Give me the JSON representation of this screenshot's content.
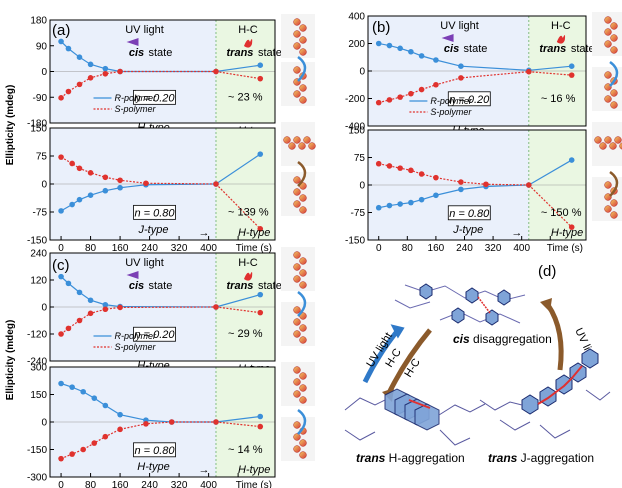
{
  "figure": {
    "y_axis_label": "Ellipticity (mdeg)",
    "x_axis_label": "Time (s)",
    "uv_label": "UV light",
    "hc_label": "H-C",
    "cis_state": "cis",
    "trans_state": "trans",
    "state_word": "state",
    "legend_r": "R-polymer",
    "legend_s": "S-polymer",
    "arrow_glyph": "→",
    "colors": {
      "r_series": "#3b8fd9",
      "s_series": "#e0322e",
      "uv_bg": "#eaf0fb",
      "hc_bg": "#eaf7e2"
    }
  },
  "panel_d": {
    "letter": "(d)",
    "cis_caption_italic": "cis",
    "cis_caption_rest": " disaggregation",
    "trans_h_italic": "trans",
    "trans_h_rest": " H-aggregation",
    "trans_j_italic": "trans",
    "trans_j_rest": " J-aggregation",
    "uv_light": "UV light",
    "hc": "H-C"
  },
  "chart_data": [
    {
      "id": "a-top",
      "panel_letter": "(a)",
      "type": "line",
      "x": [
        0,
        20,
        50,
        80,
        120,
        160,
        420,
        540
      ],
      "r_values": [
        105,
        80,
        50,
        25,
        10,
        0,
        0,
        22
      ],
      "s_values": [
        -92,
        -70,
        -45,
        -22,
        -8,
        0,
        0,
        -25
      ],
      "ylim": [
        -180,
        180
      ],
      "yticks": [
        -180,
        -90,
        0,
        90,
        180
      ],
      "xlim": [
        -30,
        580
      ],
      "xticks": [],
      "n_label": "n = 0.20",
      "percent": "~ 23 %",
      "type_left": "H-type",
      "type_right": "H-type",
      "uv_end": 420
    },
    {
      "id": "a-bottom",
      "type": "line",
      "x": [
        0,
        30,
        50,
        80,
        120,
        160,
        230,
        420,
        540
      ],
      "r_values": [
        -72,
        -55,
        -42,
        -30,
        -18,
        -10,
        -2,
        0,
        80
      ],
      "s_values": [
        72,
        55,
        42,
        30,
        18,
        10,
        2,
        0,
        -120
      ],
      "ylim": [
        -150,
        150
      ],
      "yticks": [
        -150,
        -75,
        0,
        75,
        150
      ],
      "xlim": [
        -30,
        580
      ],
      "xticks": [
        0,
        80,
        160,
        240,
        320,
        400,
        480
      ],
      "n_label": "n = 0.80",
      "percent": "~ 139 %",
      "type_left": "J-type",
      "type_right": "H-type",
      "uv_end": 420
    },
    {
      "id": "b-top",
      "panel_letter": "(b)",
      "type": "line",
      "x": [
        0,
        30,
        60,
        90,
        120,
        160,
        230,
        420,
        540
      ],
      "r_values": [
        200,
        185,
        165,
        140,
        110,
        80,
        35,
        5,
        35
      ],
      "s_values": [
        -230,
        -210,
        -190,
        -165,
        -135,
        -100,
        -50,
        -5,
        -30
      ],
      "ylim": [
        -400,
        400
      ],
      "yticks": [
        -400,
        -200,
        0,
        200,
        400
      ],
      "xlim": [
        -30,
        580
      ],
      "xticks": [],
      "n_label": "n = 0.20",
      "percent": "~ 16 %",
      "type_left": "H-type",
      "type_right": "H-type",
      "uv_end": 420
    },
    {
      "id": "b-bottom",
      "type": "line",
      "x": [
        0,
        30,
        60,
        90,
        120,
        160,
        230,
        300,
        420,
        540
      ],
      "r_values": [
        -62,
        -56,
        -52,
        -48,
        -40,
        -28,
        -12,
        -4,
        0,
        68
      ],
      "s_values": [
        58,
        52,
        46,
        40,
        30,
        20,
        8,
        2,
        0,
        -115
      ],
      "ylim": [
        -150,
        150
      ],
      "yticks": [
        -150,
        -75,
        0,
        75,
        150
      ],
      "xlim": [
        -30,
        580
      ],
      "xticks": [
        0,
        80,
        160,
        240,
        320,
        400,
        480
      ],
      "n_label": "n = 0.80",
      "percent": "~ 150 %",
      "type_left": "J-type",
      "type_right": "H-type",
      "uv_end": 420
    },
    {
      "id": "c-top",
      "panel_letter": "(c)",
      "type": "line",
      "x": [
        0,
        20,
        50,
        80,
        120,
        160,
        420,
        540
      ],
      "r_values": [
        135,
        105,
        65,
        30,
        10,
        2,
        0,
        55
      ],
      "s_values": [
        -120,
        -95,
        -60,
        -28,
        -10,
        -2,
        0,
        -25
      ],
      "ylim": [
        -240,
        240
      ],
      "yticks": [
        -240,
        -120,
        0,
        120,
        240
      ],
      "xlim": [
        -30,
        580
      ],
      "xticks": [],
      "n_label": "n = 0.20",
      "percent": "~ 29 %",
      "type_left": "H-type",
      "type_right": "H-type",
      "uv_end": 420
    },
    {
      "id": "c-bottom",
      "type": "line",
      "x": [
        0,
        30,
        60,
        90,
        120,
        160,
        230,
        300,
        420,
        540
      ],
      "r_values": [
        210,
        190,
        165,
        130,
        90,
        40,
        10,
        0,
        0,
        30
      ],
      "s_values": [
        -200,
        -175,
        -150,
        -115,
        -80,
        -40,
        -10,
        0,
        0,
        -25
      ],
      "ylim": [
        -300,
        300
      ],
      "yticks": [
        -300,
        -150,
        0,
        150,
        300
      ],
      "xlim": [
        -30,
        580
      ],
      "xticks": [
        0,
        80,
        160,
        240,
        320,
        400,
        480
      ],
      "n_label": "n = 0.80",
      "percent": "~ 14 %",
      "type_left": "H-type",
      "type_right": "H-type",
      "uv_end": 420
    }
  ]
}
